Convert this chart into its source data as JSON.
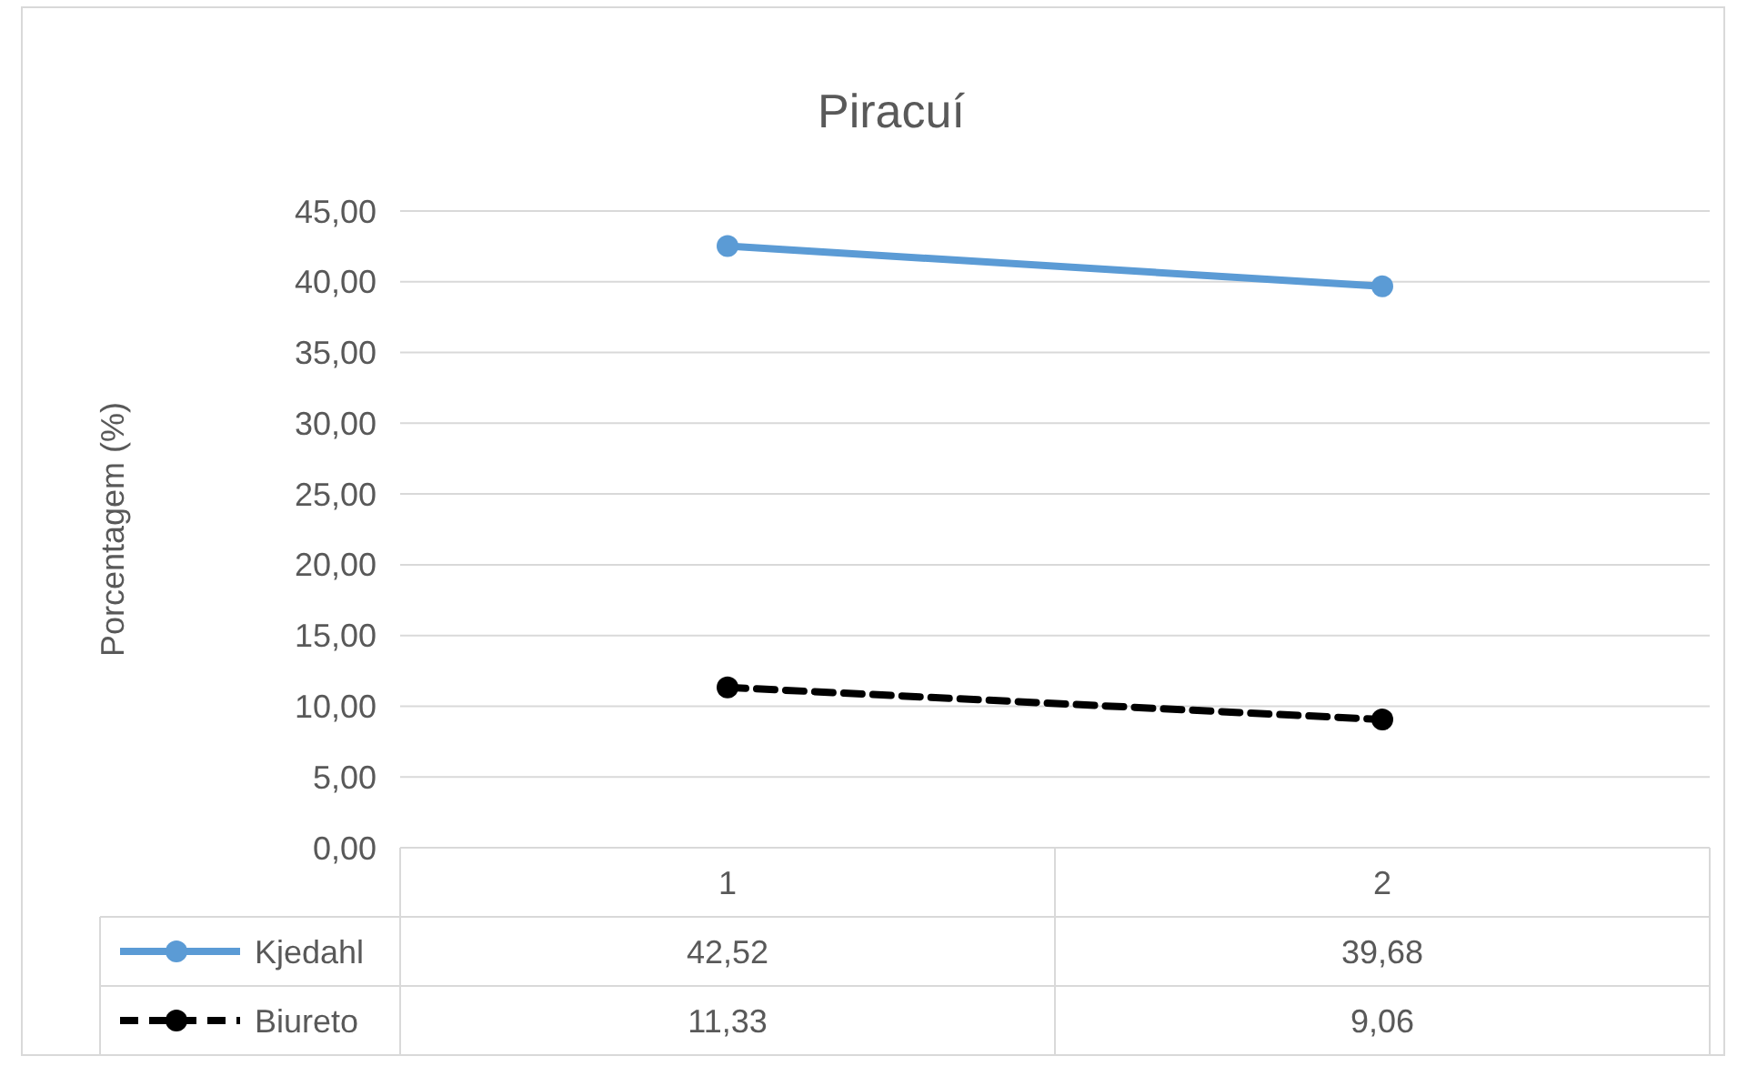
{
  "chart_data": {
    "type": "line",
    "title": "Piracuí",
    "ylabel": "Porcentagem (%)",
    "categories": [
      "1",
      "2"
    ],
    "series": [
      {
        "name": "Kjedahl",
        "color": "#5b9bd5",
        "values": [
          42.52,
          39.68
        ],
        "value_labels": [
          "42,52",
          "39,68"
        ],
        "line_style": "solid",
        "marker": "circle"
      },
      {
        "name": "Biureto",
        "color": "#000000",
        "values": [
          11.33,
          9.06
        ],
        "value_labels": [
          "11,33",
          "9,06"
        ],
        "line_style": "dashed",
        "marker": "circle"
      }
    ],
    "ylim": [
      0,
      45
    ],
    "yticks": [
      {
        "value": 0,
        "label": "0,00"
      },
      {
        "value": 5,
        "label": "5,00"
      },
      {
        "value": 10,
        "label": "10,00"
      },
      {
        "value": 15,
        "label": "15,00"
      },
      {
        "value": 20,
        "label": "20,00"
      },
      {
        "value": 25,
        "label": "25,00"
      },
      {
        "value": 30,
        "label": "30,00"
      },
      {
        "value": 35,
        "label": "35,00"
      },
      {
        "value": 40,
        "label": "40,00"
      },
      {
        "value": 45,
        "label": "45,00"
      }
    ],
    "grid": "y",
    "legend": "bottom"
  }
}
